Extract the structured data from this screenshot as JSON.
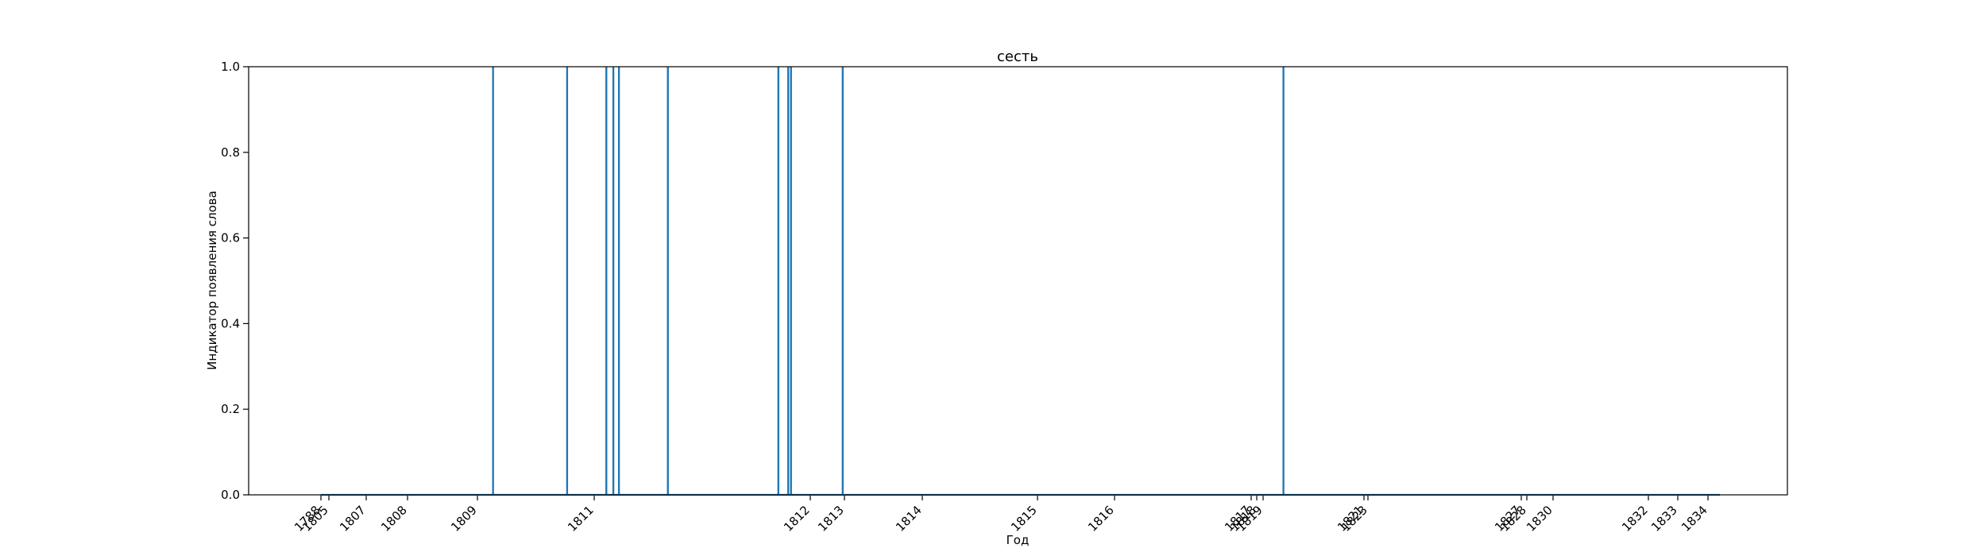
{
  "chart_data": {
    "type": "line",
    "title": "сесть",
    "xlabel": "Год",
    "ylabel": "Индикатор появления слова",
    "ylim": [
      0.0,
      1.0
    ],
    "yticks": [
      "0.0",
      "0.2",
      "0.4",
      "0.6",
      "0.8",
      "1.0"
    ],
    "grid": false,
    "series_color": "#1f77b4",
    "x_categories": [
      "1788",
      "1805",
      "1807",
      "1808",
      "1809",
      "1811",
      "1812",
      "1813",
      "1814",
      "1815",
      "1816",
      "1817",
      "1818",
      "1819",
      "1821",
      "1823",
      "1827",
      "1828",
      "1830",
      "1832",
      "1833",
      "1834"
    ],
    "occurrence_positions_in_sequence": [
      0.123,
      0.176,
      0.204,
      0.209,
      0.213,
      0.248,
      0.327,
      0.334,
      0.336,
      0.373,
      0.688
    ],
    "series": [
      {
        "values_description": "indicator is 1 at each occurrence, 0 elsewhere",
        "peak": 1.0,
        "base": 0.0
      }
    ]
  }
}
